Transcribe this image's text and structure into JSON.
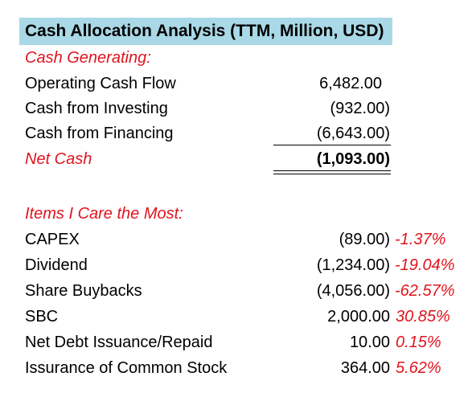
{
  "title": "Cash Allocation Analysis (TTM, Million, USD)",
  "sections": {
    "cash_generating": {
      "heading": "Cash Generating:",
      "rows": [
        {
          "label": "Operating Cash Flow",
          "value": "6,482.00"
        },
        {
          "label": "Cash from Investing",
          "value": "(932.00)"
        },
        {
          "label": "Cash from Financing",
          "value": "(6,643.00)"
        }
      ],
      "total": {
        "label": "Net Cash",
        "value": "(1,093.00)"
      }
    },
    "items_care": {
      "heading": "Items I Care the Most:",
      "rows": [
        {
          "label": "CAPEX",
          "value": "(89.00)",
          "pct": "-1.37%"
        },
        {
          "label": "Dividend",
          "value": "(1,234.00)",
          "pct": "-19.04%"
        },
        {
          "label": "Share Buybacks",
          "value": "(4,056.00)",
          "pct": "-62.57%"
        },
        {
          "label": "SBC",
          "value": "2,000.00",
          "pct": "30.85%"
        },
        {
          "label": "Net Debt Issuance/Repaid",
          "value": "10.00",
          "pct": "0.15%"
        },
        {
          "label": "Issurance of Common Stock",
          "value": "364.00",
          "pct": "5.62%"
        }
      ]
    }
  },
  "colors": {
    "title_fill": "#a9d8e6",
    "accent_red": "#e0141e",
    "text": "#000000"
  }
}
